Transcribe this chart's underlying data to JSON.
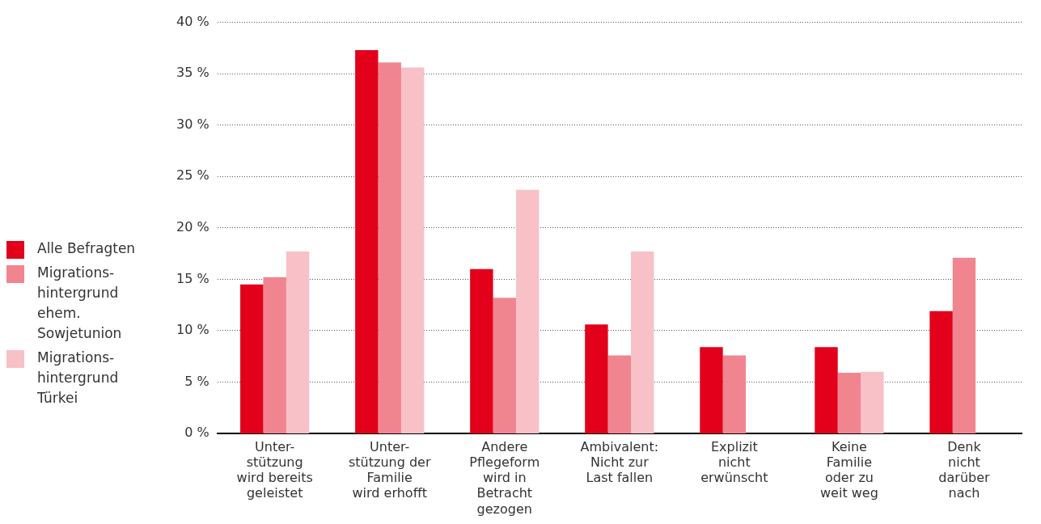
{
  "chart_data": {
    "type": "bar",
    "categories": [
      "Unter-\nstützung\nwird bereits\ngeleistet",
      "Unter-\nstützung der\nFamilie\nwird erhofft",
      "Andere\nPflegeform\nwird in\nBetracht\ngezogen",
      "Ambivalent:\nNicht zur\nLast fallen",
      "Explizit\nnicht\nerwünscht",
      "Keine\nFamilie\noder zu\nweit weg",
      "Denk\nnicht\ndarüber\nnach"
    ],
    "series": [
      {
        "name": "Alle Befragten",
        "color": "#e2001a",
        "values": [
          14.5,
          37.3,
          16.0,
          10.6,
          8.4,
          8.4,
          11.9
        ]
      },
      {
        "name": "Migrations-\nhintergrund\nehem.\nSowjetunion",
        "color": "#f08590",
        "values": [
          15.2,
          36.1,
          13.2,
          7.6,
          7.6,
          5.9,
          17.1
        ]
      },
      {
        "name": "Migrations-\nhintergrund\nTürkei",
        "color": "#f7c1c7",
        "values": [
          17.7,
          35.6,
          23.7,
          17.7,
          null,
          6.0,
          null
        ]
      }
    ],
    "ylim": [
      0,
      40
    ],
    "yticks": [
      {
        "value": 0,
        "label": "0 %"
      },
      {
        "value": 5,
        "label": "5 %"
      },
      {
        "value": 10,
        "label": "10 %"
      },
      {
        "value": 15,
        "label": "15 %"
      },
      {
        "value": 20,
        "label": "20 %"
      },
      {
        "value": 25,
        "label": "25 %"
      },
      {
        "value": 30,
        "label": "30 %"
      },
      {
        "value": 35,
        "label": "35 %"
      },
      {
        "value": 40,
        "label": "40 %"
      }
    ],
    "grid": "y",
    "legend": "left"
  }
}
